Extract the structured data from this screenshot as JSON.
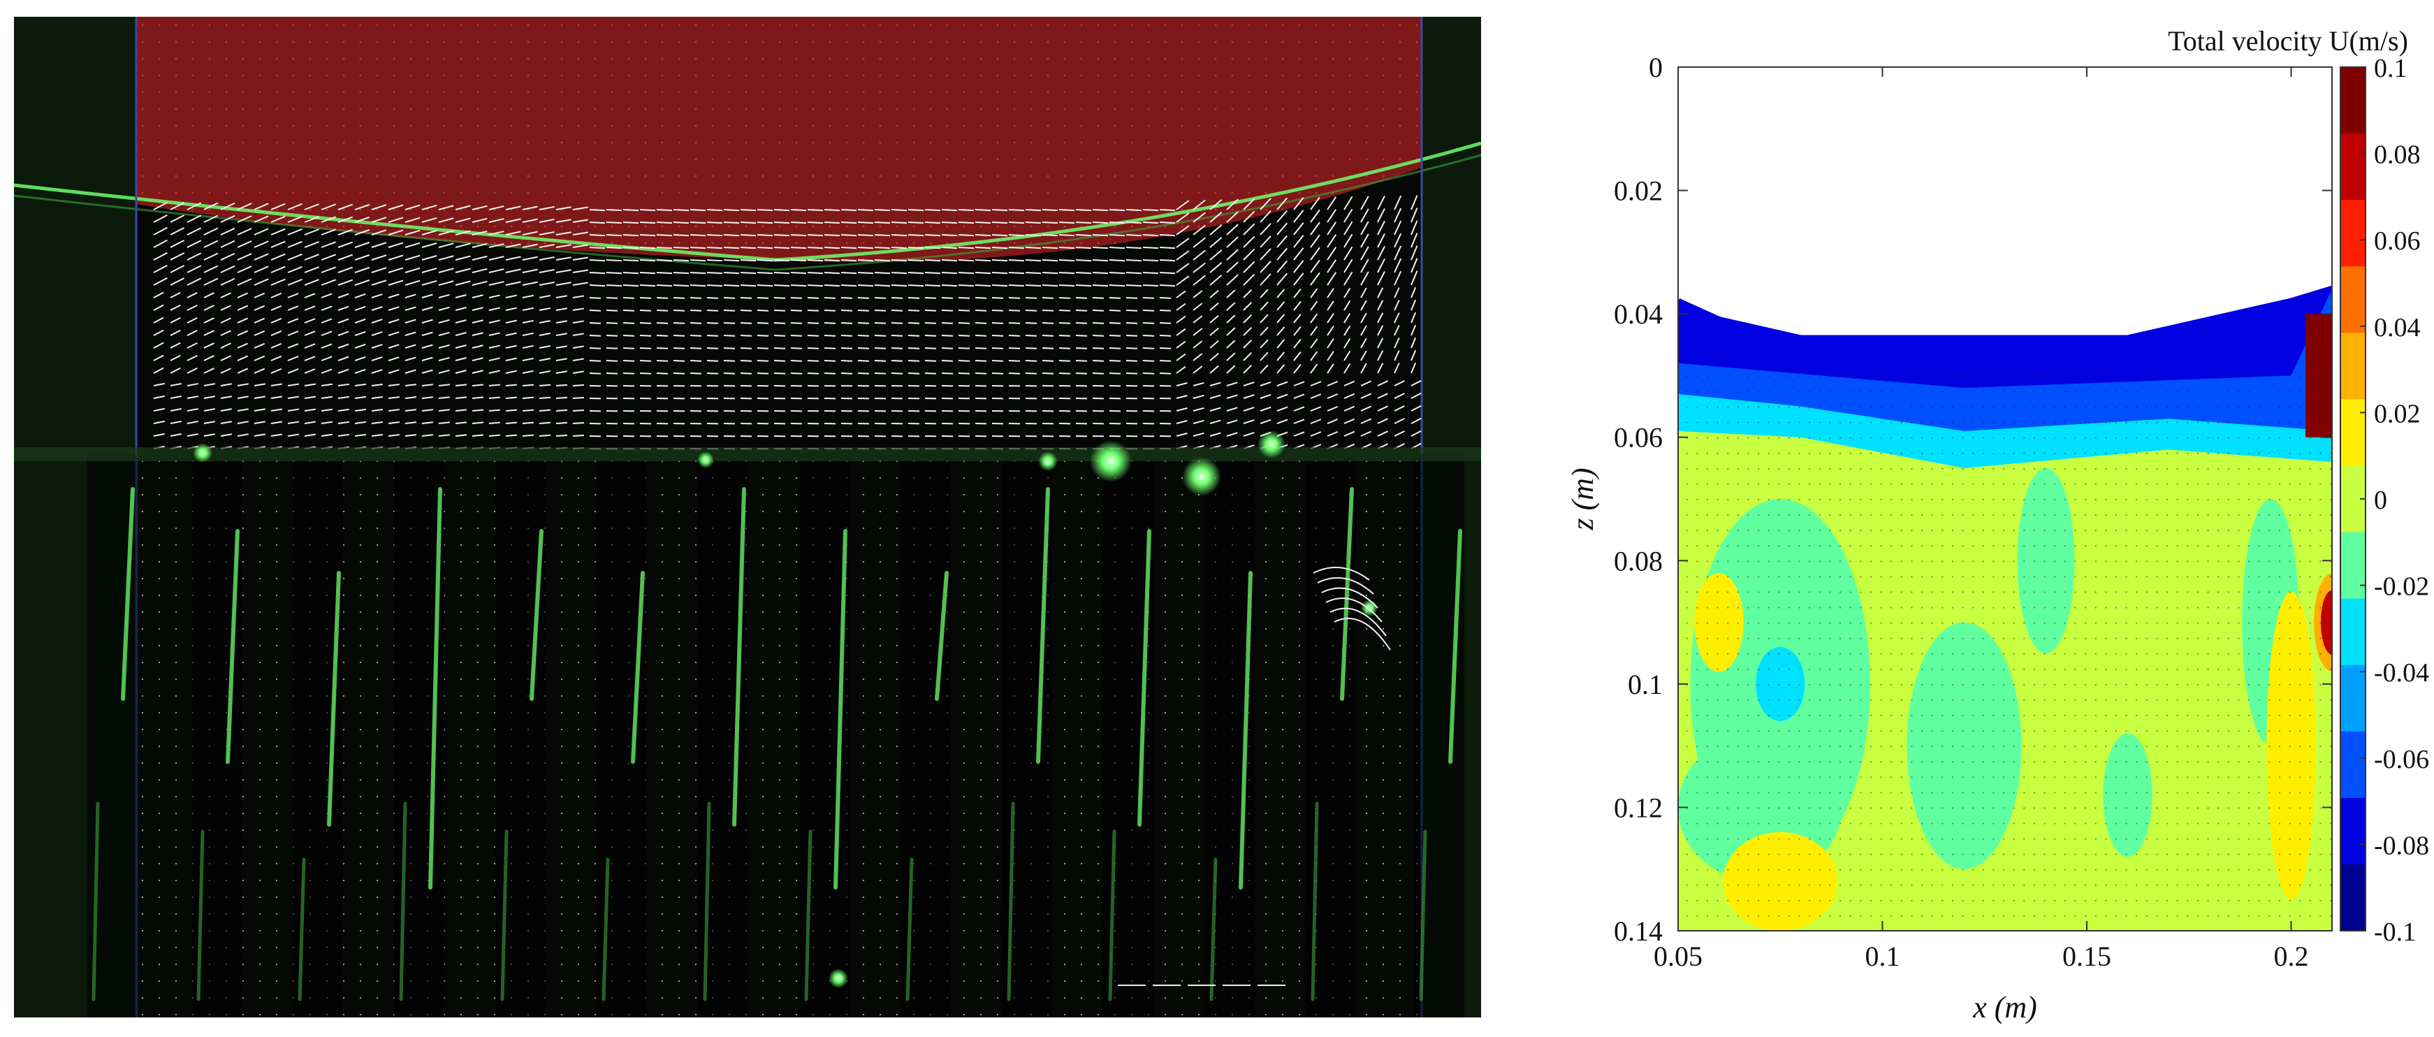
{
  "photo": {
    "description_visible": false,
    "colors": {
      "background": "#050805",
      "overlay": "#8a1a1a",
      "laser_green": "#6dff6d",
      "vector": "#f2f2f2",
      "boundary": "#3a4aa8"
    }
  },
  "chart_data": {
    "type": "heatmap",
    "title": "Total velocity U(m/s)",
    "xlabel": "x (m)",
    "ylabel": "z (m)",
    "xlim": [
      0.05,
      0.21
    ],
    "ylim": [
      0,
      0.14
    ],
    "y_inverted": true,
    "xticks": [
      0.05,
      0.1,
      0.15,
      0.2
    ],
    "xtick_labels": [
      "0.05",
      "0.1",
      "0.15",
      "0.2"
    ],
    "yticks": [
      0,
      0.02,
      0.04,
      0.06,
      0.08,
      0.1,
      0.12,
      0.14
    ],
    "ytick_labels": [
      "0",
      "0.02",
      "0.04",
      "0.06",
      "0.08",
      "0.1",
      "0.12",
      "0.14"
    ],
    "colorbar": {
      "range": [
        -0.1,
        0.1
      ],
      "ticks": [
        0.1,
        0.08,
        0.06,
        0.04,
        0.02,
        0,
        -0.02,
        -0.04,
        -0.06,
        -0.08,
        -0.1
      ],
      "tick_labels": [
        "0.1",
        "0.08",
        "0.06",
        "0.04",
        "0.02",
        "0",
        "-0.02",
        "-0.04",
        "-0.06",
        "-0.08",
        "-0.1"
      ],
      "colors": [
        "#800000",
        "#c00000",
        "#ff2000",
        "#ff7000",
        "#ffb000",
        "#ffee00",
        "#c8ff40",
        "#60ffa0",
        "#00e0ff",
        "#00a0ff",
        "#0050ff",
        "#0000e0",
        "#000090"
      ]
    },
    "free_surface": {
      "x": [
        0.05,
        0.06,
        0.08,
        0.1,
        0.12,
        0.14,
        0.16,
        0.18,
        0.2,
        0.21
      ],
      "z": [
        0.038,
        0.041,
        0.044,
        0.044,
        0.044,
        0.044,
        0.044,
        0.041,
        0.038,
        0.036
      ]
    },
    "regions": [
      {
        "name": "surface-layer",
        "value": -0.09,
        "z_top": 0.044,
        "z_bottom": 0.055
      },
      {
        "name": "transition-layer",
        "value": -0.07,
        "z_top": 0.055,
        "z_bottom": 0.062
      },
      {
        "name": "interior",
        "value": 0.0
      },
      {
        "name": "right-wall-jet",
        "x": 0.205,
        "z": [
          0.04,
          0.06
        ],
        "value": 0.1
      },
      {
        "name": "right-wall-hotspot",
        "x": 0.21,
        "z": 0.09,
        "value": 0.08
      },
      {
        "name": "low-speed-pocket",
        "x": 0.075,
        "z": 0.1,
        "value": -0.04
      }
    ]
  }
}
